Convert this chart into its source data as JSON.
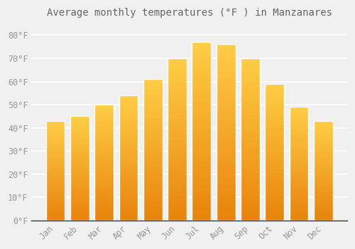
{
  "title": "Average monthly temperatures (°F ) in Manzanares",
  "months": [
    "Jan",
    "Feb",
    "Mar",
    "Apr",
    "May",
    "Jun",
    "Jul",
    "Aug",
    "Sep",
    "Oct",
    "Nov",
    "Dec"
  ],
  "values": [
    43,
    45,
    50,
    54,
    61,
    70,
    77,
    76,
    70,
    59,
    49,
    43
  ],
  "bar_color_bottom": "#E8820A",
  "bar_color_top": "#FFCC44",
  "bar_edge_color": "#cccccc",
  "background_color": "#f0f0f0",
  "plot_bg_color": "#f0f0f0",
  "grid_color": "#ffffff",
  "text_color": "#999999",
  "title_color": "#666666",
  "spine_color": "#333333",
  "ylim": [
    0,
    85
  ],
  "yticks": [
    0,
    10,
    20,
    30,
    40,
    50,
    60,
    70,
    80
  ],
  "title_fontsize": 10,
  "tick_fontsize": 8.5,
  "figsize": [
    5.0,
    3.5
  ],
  "dpi": 100
}
